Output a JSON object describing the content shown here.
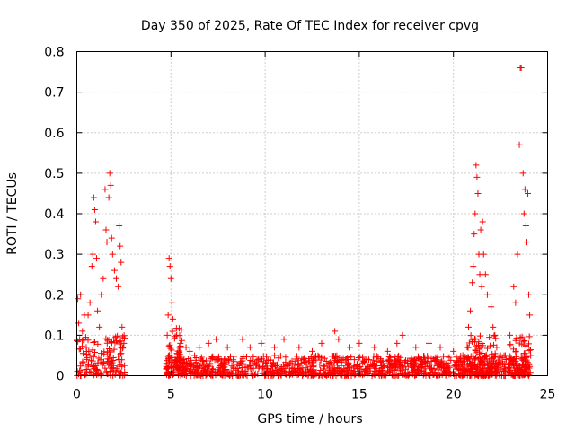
{
  "chart_data": {
    "type": "scatter",
    "title": "Day 350 of 2025, Rate Of TEC Index for receiver cpvg",
    "xlabel": "GPS time / hours",
    "ylabel": "ROTI / TECUs",
    "xlim": [
      0,
      25
    ],
    "ylim": [
      0,
      0.8
    ],
    "xticks": [
      "0",
      "5",
      "10",
      "15",
      "20",
      "25"
    ],
    "yticks": [
      "0",
      "0.1",
      "0.2",
      "0.3",
      "0.4",
      "0.5",
      "0.6",
      "0.7",
      "0.8"
    ],
    "grid": true,
    "marker": "+",
    "color": "#ff0000",
    "series": [
      {
        "name": "ROTI",
        "points": [
          [
            0.05,
            0.19
          ],
          [
            0.1,
            0.13
          ],
          [
            0.15,
            0.09
          ],
          [
            0.2,
            0.2
          ],
          [
            0.3,
            0.11
          ],
          [
            0.4,
            0.15
          ],
          [
            0.5,
            0.07
          ],
          [
            0.6,
            0.15
          ],
          [
            0.7,
            0.18
          ],
          [
            0.8,
            0.27
          ],
          [
            0.85,
            0.3
          ],
          [
            0.9,
            0.44
          ],
          [
            0.95,
            0.41
          ],
          [
            1.0,
            0.38
          ],
          [
            1.05,
            0.29
          ],
          [
            1.1,
            0.16
          ],
          [
            1.2,
            0.12
          ],
          [
            1.3,
            0.2
          ],
          [
            1.4,
            0.24
          ],
          [
            1.5,
            0.46
          ],
          [
            1.55,
            0.36
          ],
          [
            1.6,
            0.33
          ],
          [
            1.7,
            0.44
          ],
          [
            1.75,
            0.5
          ],
          [
            1.8,
            0.47
          ],
          [
            1.85,
            0.34
          ],
          [
            1.9,
            0.3
          ],
          [
            2.0,
            0.26
          ],
          [
            2.1,
            0.24
          ],
          [
            2.2,
            0.22
          ],
          [
            2.25,
            0.37
          ],
          [
            2.3,
            0.32
          ],
          [
            2.35,
            0.28
          ],
          [
            2.4,
            0.12
          ],
          [
            2.5,
            0.08
          ],
          [
            4.8,
            0.1
          ],
          [
            4.85,
            0.15
          ],
          [
            4.9,
            0.29
          ],
          [
            4.95,
            0.27
          ],
          [
            5.0,
            0.24
          ],
          [
            5.05,
            0.18
          ],
          [
            5.1,
            0.14
          ],
          [
            5.3,
            0.1
          ],
          [
            5.5,
            0.08
          ],
          [
            5.8,
            0.07
          ],
          [
            6.0,
            0.06
          ],
          [
            6.5,
            0.07
          ],
          [
            7.0,
            0.08
          ],
          [
            7.4,
            0.09
          ],
          [
            8.0,
            0.07
          ],
          [
            8.8,
            0.09
          ],
          [
            9.2,
            0.07
          ],
          [
            9.8,
            0.08
          ],
          [
            10.5,
            0.07
          ],
          [
            11.0,
            0.09
          ],
          [
            11.8,
            0.07
          ],
          [
            12.5,
            0.06
          ],
          [
            13.0,
            0.08
          ],
          [
            13.7,
            0.11
          ],
          [
            13.9,
            0.09
          ],
          [
            14.5,
            0.07
          ],
          [
            15.0,
            0.08
          ],
          [
            15.8,
            0.07
          ],
          [
            16.5,
            0.06
          ],
          [
            17.0,
            0.08
          ],
          [
            17.3,
            0.1
          ],
          [
            18.0,
            0.07
          ],
          [
            18.7,
            0.08
          ],
          [
            19.3,
            0.07
          ],
          [
            20.0,
            0.06
          ],
          [
            20.5,
            0.05
          ],
          [
            20.8,
            0.12
          ],
          [
            20.9,
            0.16
          ],
          [
            21.0,
            0.23
          ],
          [
            21.05,
            0.27
          ],
          [
            21.1,
            0.35
          ],
          [
            21.15,
            0.4
          ],
          [
            21.2,
            0.52
          ],
          [
            21.25,
            0.49
          ],
          [
            21.3,
            0.45
          ],
          [
            21.35,
            0.3
          ],
          [
            21.4,
            0.25
          ],
          [
            21.45,
            0.36
          ],
          [
            21.5,
            0.22
          ],
          [
            21.55,
            0.38
          ],
          [
            21.6,
            0.3
          ],
          [
            21.7,
            0.25
          ],
          [
            21.8,
            0.2
          ],
          [
            22.0,
            0.17
          ],
          [
            22.1,
            0.12
          ],
          [
            22.2,
            0.1
          ],
          [
            22.3,
            0.07
          ],
          [
            22.5,
            0.05
          ],
          [
            22.8,
            0.04
          ],
          [
            23.0,
            0.1
          ],
          [
            23.2,
            0.22
          ],
          [
            23.3,
            0.18
          ],
          [
            23.4,
            0.3
          ],
          [
            23.5,
            0.57
          ],
          [
            23.55,
            0.76
          ],
          [
            23.6,
            0.76
          ],
          [
            23.7,
            0.5
          ],
          [
            23.75,
            0.4
          ],
          [
            23.8,
            0.46
          ],
          [
            23.85,
            0.37
          ],
          [
            23.9,
            0.33
          ],
          [
            23.95,
            0.45
          ],
          [
            24.0,
            0.2
          ],
          [
            24.05,
            0.15
          ]
        ],
        "envelopes": [
          [
            0.0,
            2.55,
            0.0,
            0.1
          ],
          [
            4.75,
            24.1,
            0.0,
            0.05
          ],
          [
            4.8,
            5.6,
            0.02,
            0.12
          ],
          [
            20.7,
            22.3,
            0.0,
            0.1
          ],
          [
            23.0,
            24.1,
            0.0,
            0.1
          ]
        ]
      }
    ]
  }
}
